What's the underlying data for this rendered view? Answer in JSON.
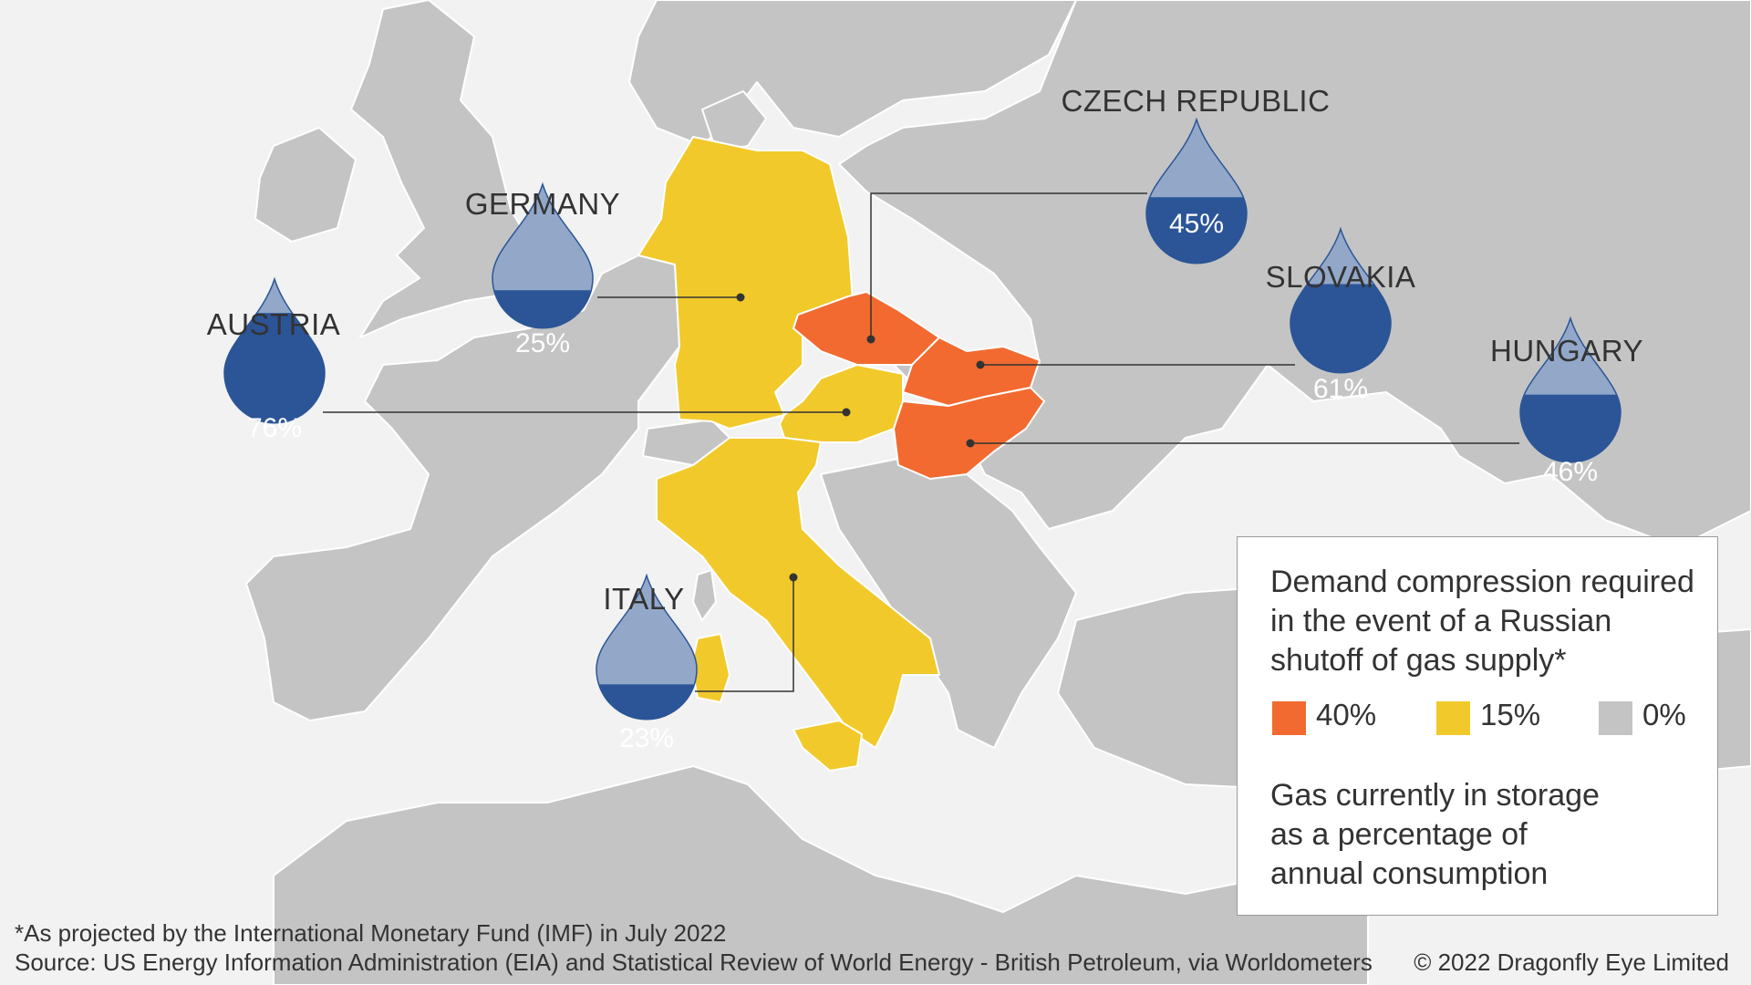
{
  "countries": [
    {
      "key": "czech",
      "name": "CZECH REPUBLIC",
      "storage_pct": 45,
      "storage_label": "45%",
      "demand_compression": "40%"
    },
    {
      "key": "germany",
      "name": "GERMANY",
      "storage_pct": 25,
      "storage_label": "25%",
      "demand_compression": "15%"
    },
    {
      "key": "slovakia",
      "name": "SLOVAKIA",
      "storage_pct": 61,
      "storage_label": "61%",
      "demand_compression": "40%"
    },
    {
      "key": "austria",
      "name": "AUSTRIA",
      "storage_pct": 76,
      "storage_label": "76%",
      "demand_compression": "15%"
    },
    {
      "key": "hungary",
      "name": "HUNGARY",
      "storage_pct": 46,
      "storage_label": "46%",
      "demand_compression": "40%"
    },
    {
      "key": "italy",
      "name": "ITALY",
      "storage_pct": 23,
      "storage_label": "23%",
      "demand_compression": "15%"
    }
  ],
  "legend": {
    "title": "Demand compression required in the event of a Russian shutoff of gas supply*",
    "categories": [
      {
        "label": "40%",
        "color": "#f26a30"
      },
      {
        "label": "15%",
        "color": "#f2c92b"
      },
      {
        "label": "0%",
        "color": "#c4c4c4"
      }
    ],
    "storage_text": "Gas currently in storage as a percentage of annual consumption"
  },
  "colors": {
    "sea": "#f2f2f2",
    "land": "#c4c4c4",
    "border": "#ffffff",
    "drop_light": "#93a8c9",
    "drop_dark": "#2b5597"
  },
  "footnote": "*As projected by the International Monetary Fund (IMF) in July 2022",
  "source": "Source: US Energy Information Administration (EIA) and Statistical Review of World Energy - British Petroleum, via Worldometers",
  "copyright": "© 2022 Dragonfly Eye Limited"
}
